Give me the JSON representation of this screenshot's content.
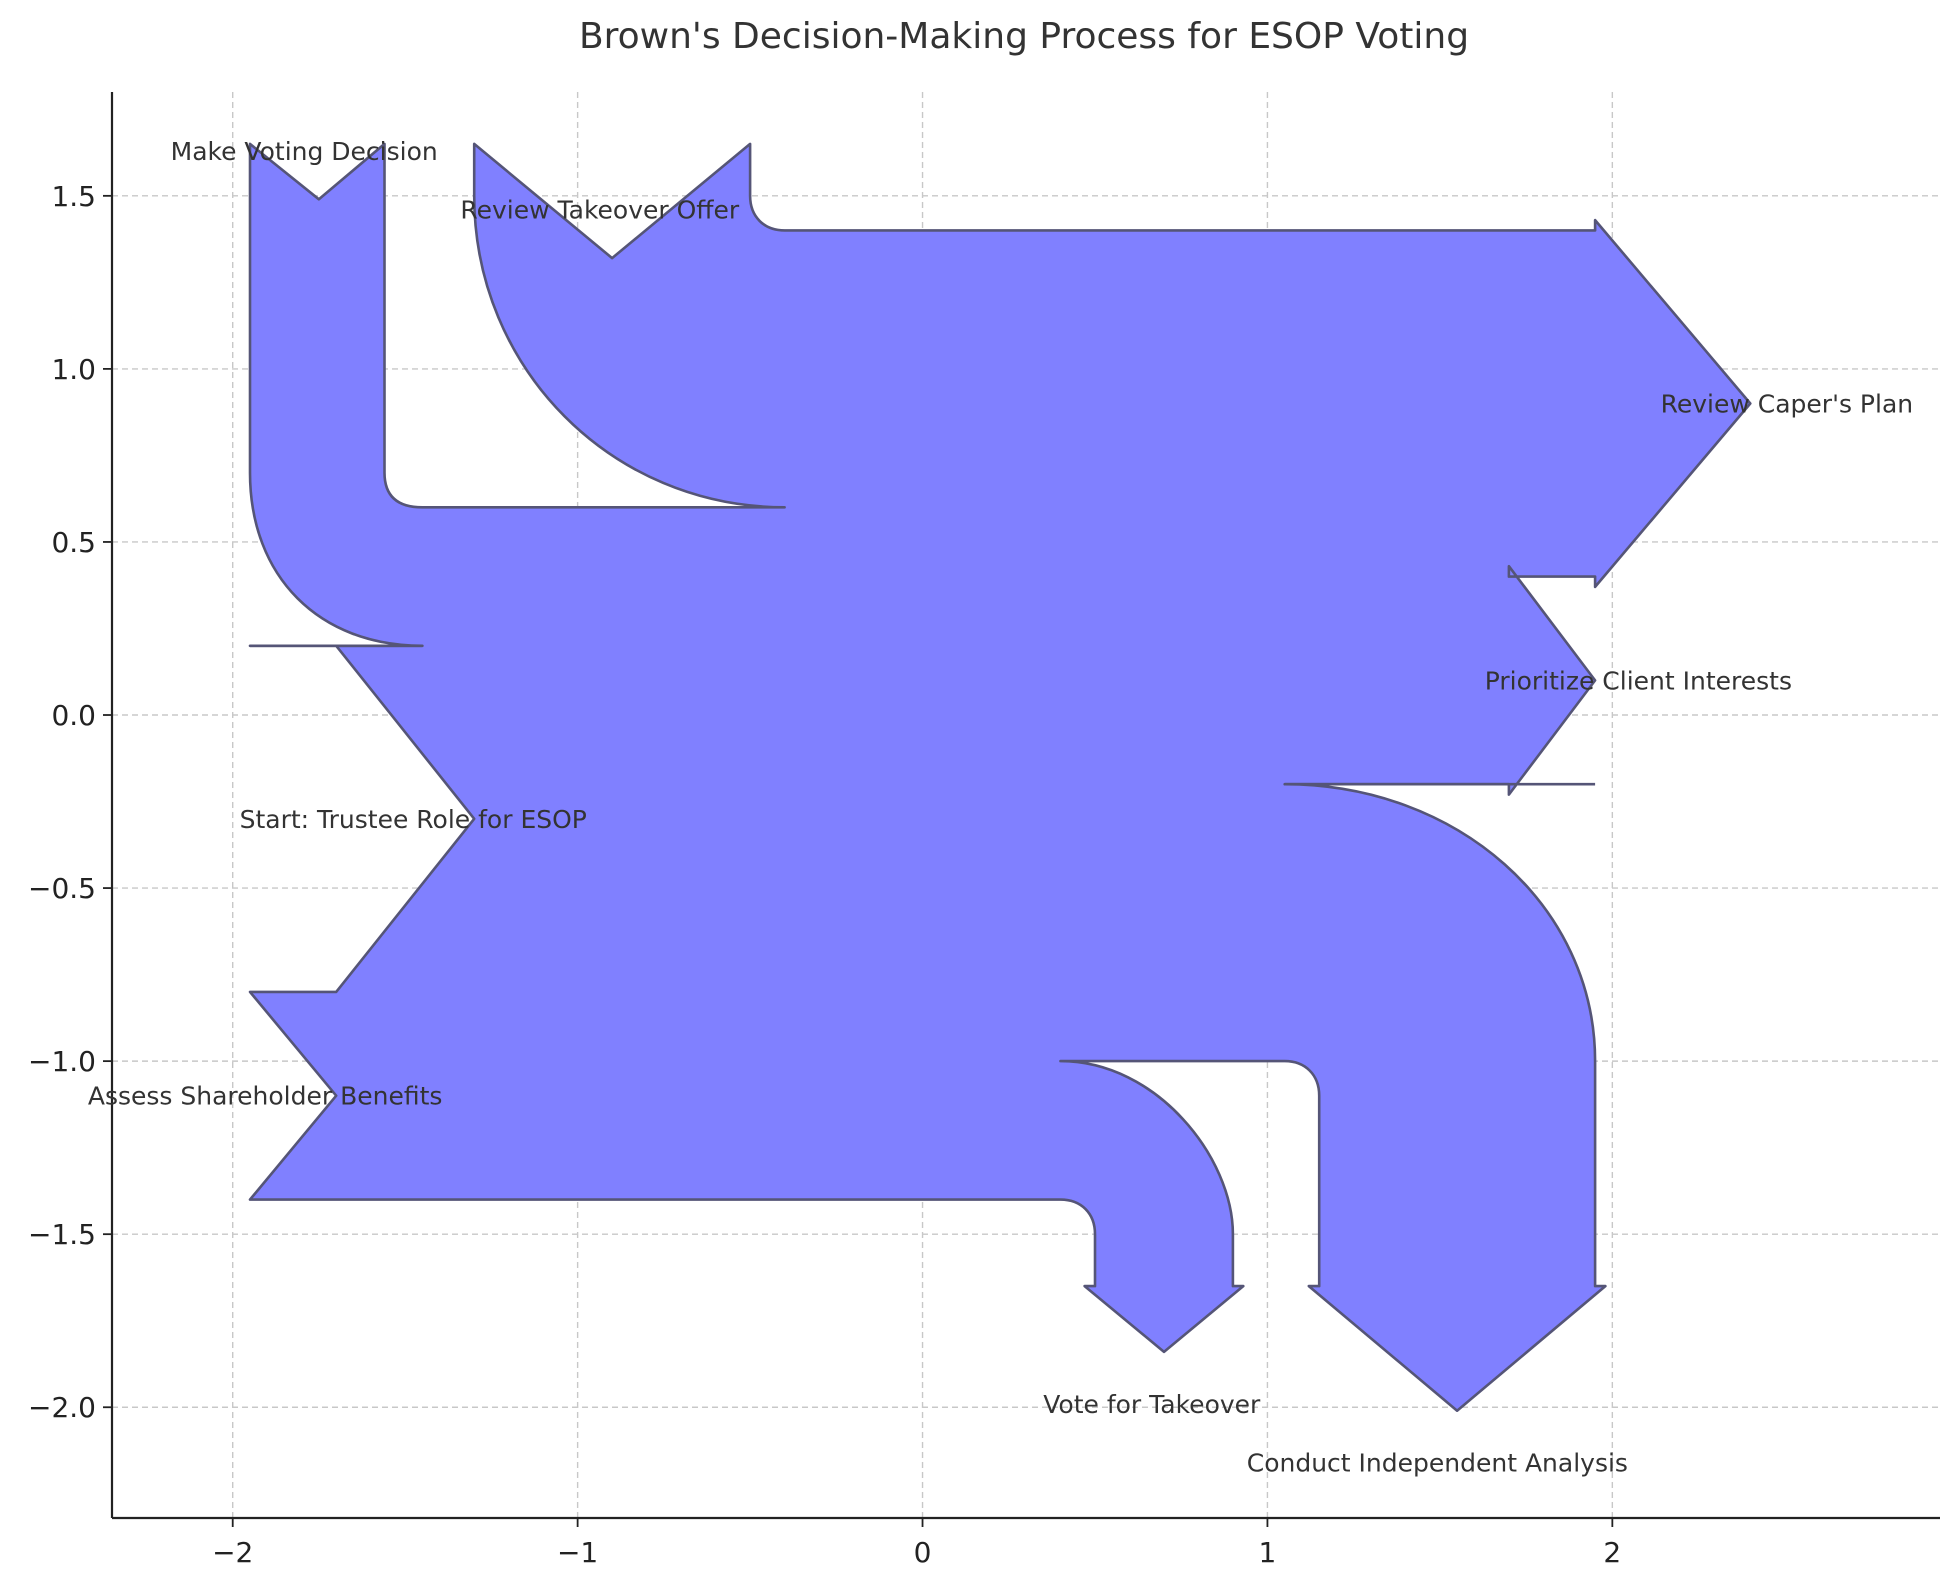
{
  "chart_data": {
    "type": "sankey",
    "title": "Brown's Decision-Making Process for ESOP Voting",
    "xlim": [
      -2.35,
      2.95
    ],
    "ylim": [
      -2.32,
      1.8
    ],
    "grid": true,
    "x_ticks": [
      {
        "value": -2,
        "label": "−2"
      },
      {
        "value": -1,
        "label": "−1"
      },
      {
        "value": 0,
        "label": "0"
      },
      {
        "value": 1,
        "label": "1"
      },
      {
        "value": 2,
        "label": "2"
      }
    ],
    "y_ticks": [
      {
        "value": 1.5,
        "label": "1.5"
      },
      {
        "value": 1.0,
        "label": "1.0"
      },
      {
        "value": 0.5,
        "label": "0.5"
      },
      {
        "value": 0.0,
        "label": "0.0"
      },
      {
        "value": -0.5,
        "label": "−0.5"
      },
      {
        "value": -1.0,
        "label": "−1.0"
      },
      {
        "value": -1.5,
        "label": "−1.5"
      },
      {
        "value": -2.0,
        "label": "−2.0"
      }
    ],
    "flow_color": "#8080ff",
    "edge_color": "#555577",
    "labels": [
      {
        "text": "Start: Trustee Role for ESOP",
        "x": -1.98,
        "y": -0.3,
        "anchor": "start"
      },
      {
        "text": "Assess Shareholder Benefits",
        "x": -2.42,
        "y": -1.1,
        "anchor": "start"
      },
      {
        "text": "Review Caper's Plan",
        "x": 2.14,
        "y": 0.9,
        "anchor": "start"
      },
      {
        "text": "Prioritize Client Interests",
        "x": 1.63,
        "y": 0.1,
        "anchor": "start"
      },
      {
        "text": "Review Takeover Offer",
        "x": -1.34,
        "y": 1.46,
        "anchor": "start"
      },
      {
        "text": "Make Voting Decision",
        "x": -2.18,
        "y": 1.63,
        "anchor": "start"
      },
      {
        "text": "Vote for Takeover",
        "x": 0.35,
        "y": -1.99,
        "anchor": "start"
      },
      {
        "text": "Conduct Independent Analysis",
        "x": 0.94,
        "y": -2.16,
        "anchor": "start"
      }
    ]
  }
}
